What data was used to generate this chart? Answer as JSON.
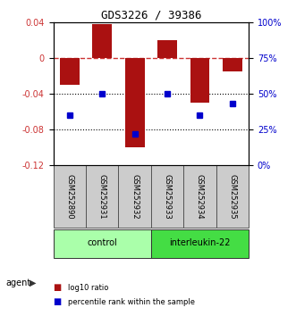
{
  "title": "GDS3226 / 39386",
  "samples": [
    "GSM252890",
    "GSM252931",
    "GSM252932",
    "GSM252933",
    "GSM252934",
    "GSM252935"
  ],
  "log10_ratio": [
    -0.03,
    0.038,
    -0.1,
    0.02,
    -0.05,
    -0.015
  ],
  "percentile_rank": [
    35,
    50,
    22,
    50,
    35,
    43
  ],
  "groups": [
    {
      "label": "control",
      "indices": [
        0,
        1,
        2
      ],
      "color": "#aaffaa"
    },
    {
      "label": "interleukin-22",
      "indices": [
        3,
        4,
        5
      ],
      "color": "#44dd44"
    }
  ],
  "bar_color": "#aa1111",
  "dot_color": "#0000cc",
  "ylim_left": [
    -0.12,
    0.04
  ],
  "ylim_right": [
    0,
    100
  ],
  "yticks_left": [
    -0.12,
    -0.08,
    -0.04,
    0.0,
    0.04
  ],
  "yticks_right": [
    0,
    25,
    50,
    75,
    100
  ],
  "hline_color": "#cc3333",
  "dotted_line_color": "#000000",
  "bar_width": 0.6,
  "agent_label": "agent",
  "legend_items": [
    {
      "label": "log10 ratio",
      "color": "#aa1111"
    },
    {
      "label": "percentile rank within the sample",
      "color": "#0000cc"
    }
  ]
}
